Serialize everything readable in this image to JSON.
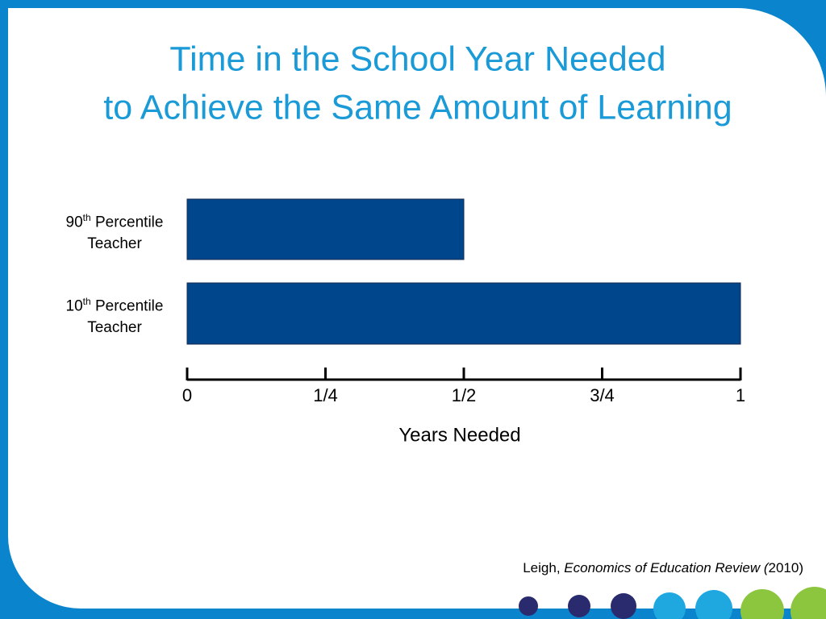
{
  "chart_data": {
    "type": "hbar",
    "title": [
      "Time in the School Year Needed",
      "to Achieve the Same Amount of Learning"
    ],
    "categories": [
      "90th Percentile Teacher",
      "10th Percentile Teacher"
    ],
    "values": [
      0.5,
      1
    ],
    "color": "#00468c",
    "xlim": [
      0,
      1
    ],
    "xticks": [
      0,
      {
        "value": 0.25,
        "label": "1/4"
      },
      {
        "value": 0.5,
        "label": "1/2"
      },
      {
        "value": 0.75,
        "label": "3/4"
      },
      1
    ],
    "xlabel": "Years Needed",
    "source": {
      "author": "Leigh,",
      "journal": "Economics of Education Review (",
      "year": "2010)"
    }
  }
}
